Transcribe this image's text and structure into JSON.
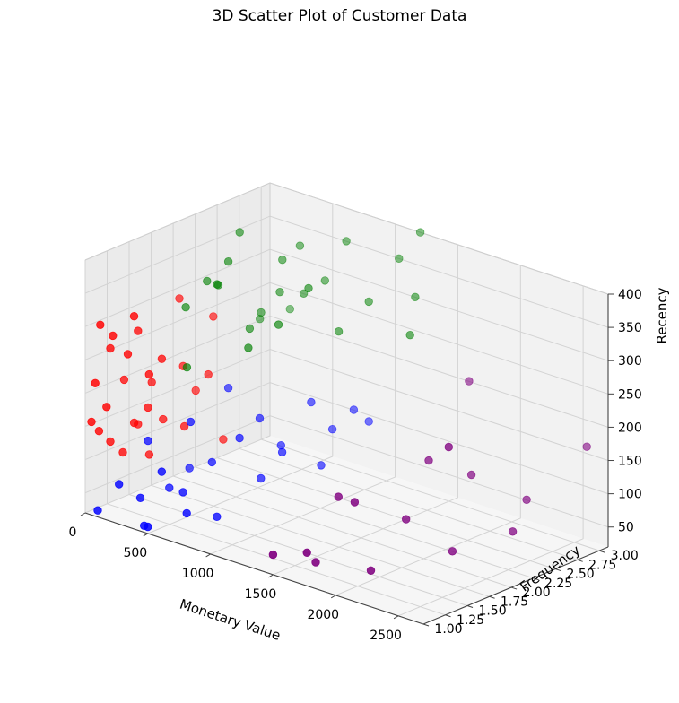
{
  "chart_data": {
    "type": "scatter3d",
    "title": "3D Scatter Plot of Customer Data",
    "xlabel": "Monetary Value",
    "ylabel": "Frequency",
    "zlabel": "Recency",
    "xlim": [
      0,
      2700
    ],
    "ylim": [
      1.0,
      3.1
    ],
    "zlim": [
      20,
      400
    ],
    "x_ticks": [
      "0",
      "500",
      "1000",
      "1500",
      "2000",
      "2500"
    ],
    "y_ticks": [
      "1.00",
      "1.25",
      "1.50",
      "1.75",
      "2.00",
      "2.25",
      "2.50",
      "2.75",
      "3.00"
    ],
    "z_ticks": [
      "50",
      "100",
      "150",
      "200",
      "250",
      "300",
      "350",
      "400"
    ],
    "grid": true,
    "colors": {
      "red": "#ff0000",
      "blue": "#0000ff",
      "green": "#008000",
      "purple": "#800080"
    },
    "series": [
      {
        "color": "red",
        "points": [
          [
            50,
            1.0,
            160
          ],
          [
            80,
            1.0,
            220
          ],
          [
            120,
            1.0,
            310
          ],
          [
            40,
            1.1,
            140
          ],
          [
            100,
            1.1,
            180
          ],
          [
            150,
            1.1,
            290
          ],
          [
            60,
            1.2,
            120
          ],
          [
            200,
            1.2,
            260
          ],
          [
            250,
            1.2,
            320
          ],
          [
            90,
            1.3,
            100
          ],
          [
            180,
            1.3,
            150
          ],
          [
            300,
            1.3,
            230
          ],
          [
            30,
            1.4,
            200
          ],
          [
            140,
            1.4,
            280
          ],
          [
            220,
            1.4,
            170
          ],
          [
            70,
            1.5,
            130
          ],
          [
            260,
            1.5,
            240
          ],
          [
            160,
            1.5,
            90
          ],
          [
            110,
            1.6,
            190
          ],
          [
            300,
            1.7,
            130
          ],
          [
            220,
            1.8,
            210
          ],
          [
            120,
            1.9,
            300
          ],
          [
            180,
            2.0,
            160
          ],
          [
            250,
            2.1,
            270
          ],
          [
            400,
            2.0,
            100
          ],
          [
            350,
            1.9,
            200
          ],
          [
            60,
            1.2,
            260
          ],
          [
            200,
            1.6,
            140
          ]
        ]
      },
      {
        "color": "blue",
        "points": [
          [
            100,
            1.0,
            30
          ],
          [
            200,
            1.1,
            70
          ],
          [
            300,
            1.2,
            50
          ],
          [
            400,
            1.3,
            90
          ],
          [
            500,
            1.4,
            60
          ],
          [
            150,
            1.5,
            110
          ],
          [
            250,
            1.6,
            40
          ],
          [
            350,
            1.7,
            140
          ],
          [
            450,
            1.8,
            80
          ],
          [
            600,
            1.9,
            120
          ],
          [
            700,
            2.0,
            60
          ],
          [
            800,
            2.1,
            100
          ],
          [
            550,
            2.2,
            130
          ],
          [
            650,
            2.3,
            90
          ],
          [
            900,
            2.4,
            70
          ],
          [
            750,
            2.5,
            150
          ],
          [
            850,
            2.6,
            110
          ],
          [
            950,
            2.7,
            140
          ],
          [
            400,
            1.1,
            20
          ],
          [
            600,
            1.3,
            40
          ],
          [
            200,
            1.9,
            50
          ],
          [
            300,
            2.2,
            160
          ],
          [
            1000,
            2.8,
            120
          ],
          [
            700,
            1.5,
            30
          ],
          [
            500,
            1.0,
            30
          ]
        ]
      },
      {
        "color": "green",
        "points": [
          [
            100,
            2.0,
            280
          ],
          [
            200,
            2.1,
            320
          ],
          [
            300,
            2.2,
            350
          ],
          [
            150,
            2.3,
            300
          ],
          [
            250,
            2.4,
            380
          ],
          [
            350,
            2.5,
            260
          ],
          [
            450,
            2.6,
            340
          ],
          [
            550,
            2.7,
            290
          ],
          [
            650,
            2.8,
            310
          ],
          [
            750,
            2.9,
            370
          ],
          [
            500,
            2.5,
            300
          ],
          [
            600,
            2.0,
            250
          ],
          [
            700,
            2.2,
            280
          ],
          [
            800,
            2.4,
            330
          ],
          [
            900,
            2.6,
            260
          ],
          [
            1000,
            2.8,
            300
          ],
          [
            1100,
            3.0,
            360
          ],
          [
            1200,
            3.1,
            400
          ],
          [
            1300,
            2.9,
            320
          ],
          [
            1400,
            2.7,
            280
          ],
          [
            300,
            2.9,
            240
          ],
          [
            200,
            2.7,
            230
          ],
          [
            400,
            2.3,
            250
          ],
          [
            350,
            2.0,
            330
          ],
          [
            250,
            1.8,
            210
          ],
          [
            450,
            2.8,
            350
          ]
        ]
      },
      {
        "color": "purple",
        "points": [
          [
            1500,
            1.0,
            50
          ],
          [
            1700,
            1.1,
            60
          ],
          [
            1800,
            1.5,
            120
          ],
          [
            1600,
            1.6,
            110
          ],
          [
            2000,
            1.8,
            90
          ],
          [
            2200,
            2.0,
            200
          ],
          [
            1900,
            2.2,
            150
          ],
          [
            2100,
            2.4,
            130
          ],
          [
            2400,
            2.6,
            100
          ],
          [
            2600,
            3.0,
            170
          ],
          [
            1700,
            1.2,
            40
          ],
          [
            2000,
            1.4,
            35
          ],
          [
            2300,
            1.9,
            55
          ],
          [
            1800,
            2.8,
            230
          ],
          [
            2500,
            2.3,
            75
          ]
        ]
      }
    ]
  }
}
